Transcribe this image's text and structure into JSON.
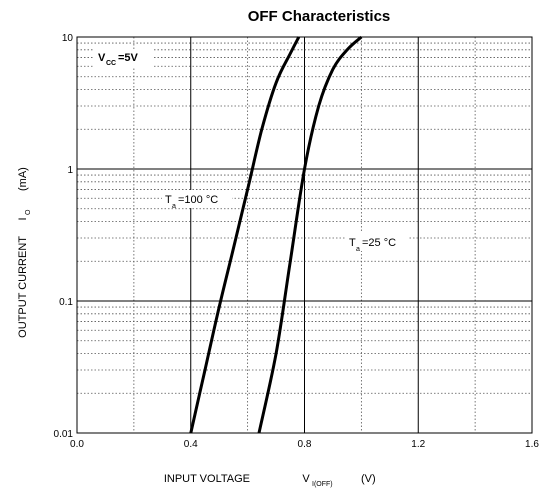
{
  "chart_data": {
    "type": "line",
    "title": "OFF Characteristics",
    "xlabel": {
      "main": "INPUT VOLTAGE",
      "symbol": "V",
      "subscript": "I(OFF)",
      "unit": "(V)"
    },
    "ylabel": {
      "main": "OUTPUT CURRENT",
      "symbol": "I",
      "subscript": "O",
      "unit": "(mA)"
    },
    "x_ticks": [
      "0.0",
      "0.4",
      "0.8",
      "1.2",
      "1.6"
    ],
    "y_ticks": [
      "0.01",
      "0.1",
      "1",
      "10"
    ],
    "xlim": [
      0,
      1.6
    ],
    "ylim": [
      0.01,
      10
    ],
    "y_scale": "log",
    "grid": true,
    "condition": {
      "symbol": "V",
      "subscript": "CC",
      "value": "=5V"
    },
    "series": [
      {
        "name": "Ta=100 °C",
        "label": {
          "symbol": "T",
          "subscript": "a",
          "value": "=100 °C"
        },
        "points": [
          [
            0.4,
            0.01
          ],
          [
            0.45,
            0.03
          ],
          [
            0.5,
            0.09
          ],
          [
            0.55,
            0.25
          ],
          [
            0.6,
            0.7
          ],
          [
            0.65,
            2.0
          ],
          [
            0.7,
            4.5
          ],
          [
            0.75,
            7.5
          ],
          [
            0.78,
            10
          ]
        ]
      },
      {
        "name": "Ta=25 °C",
        "label": {
          "symbol": "T",
          "subscript": "a",
          "value": "=25 °C"
        },
        "points": [
          [
            0.64,
            0.01
          ],
          [
            0.7,
            0.04
          ],
          [
            0.75,
            0.2
          ],
          [
            0.8,
            1.0
          ],
          [
            0.85,
            3.0
          ],
          [
            0.9,
            5.7
          ],
          [
            0.95,
            8.0
          ],
          [
            1.0,
            10
          ]
        ]
      }
    ]
  }
}
